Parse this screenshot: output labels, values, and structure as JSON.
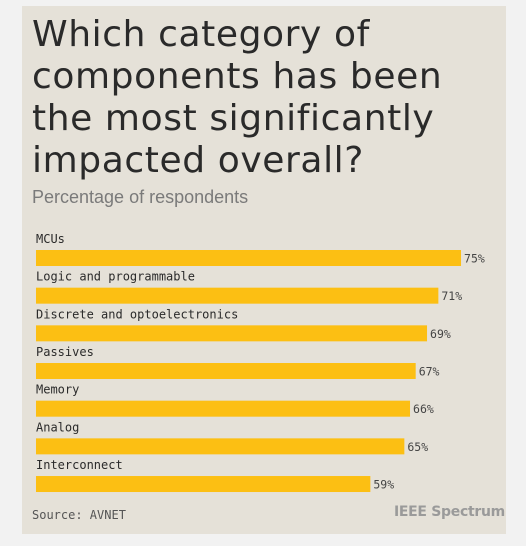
{
  "title": "Which category of components has been the most significantly impacted overall?",
  "subtitle": "Percentage of respondents",
  "source": "Source: AVNET",
  "brand": "IEEE Spectrum",
  "colors": {
    "bar": "#fcbf13",
    "background": "#e5e1d8"
  },
  "chart_data": {
    "type": "bar",
    "orientation": "horizontal",
    "categories": [
      "MCUs",
      "Logic and programmable",
      "Discrete and optoelectronics",
      "Passives",
      "Memory",
      "Analog",
      "Interconnect"
    ],
    "values": [
      75,
      71,
      69,
      67,
      66,
      65,
      59
    ],
    "value_labels": [
      "75%",
      "71%",
      "69%",
      "67%",
      "66%",
      "65%",
      "59%"
    ],
    "unit": "%",
    "grid": false,
    "legend": "none"
  }
}
